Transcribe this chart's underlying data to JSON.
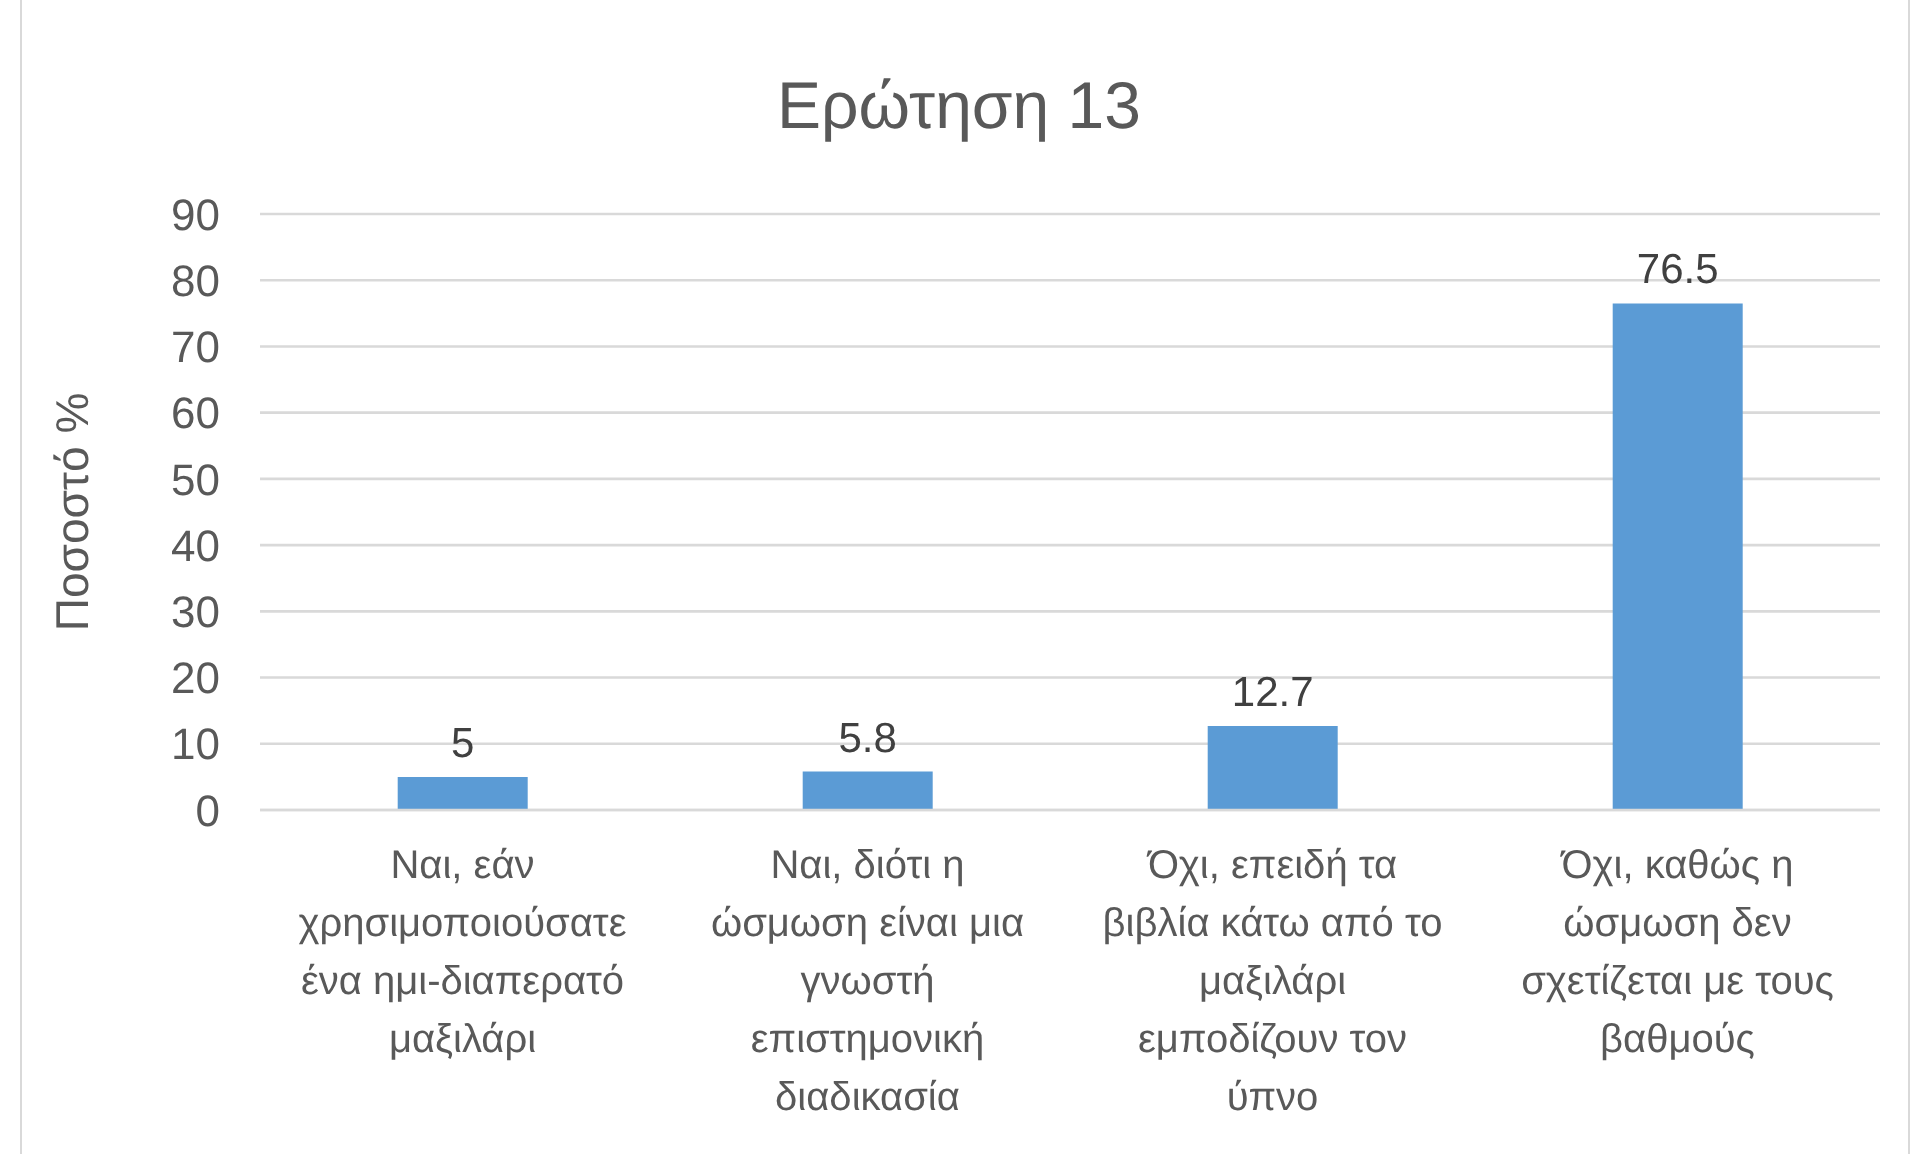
{
  "chart_data": {
    "type": "bar",
    "title": "Ερώτηση 13",
    "ylabel": "Ποσοστό %",
    "categories": [
      "Ναι, εάν χρησιμοποιούσατε ένα ημι-διαπερατό μαξιλάρι",
      "Ναι, διότι η ώσμωση είναι μια γνωστή επιστημονική διαδικασία",
      "Όχι, επειδή τα βιβλία κάτω από το μαξιλάρι εμποδίζουν τον ύπνο",
      "Όχι, καθώς η ώσμωση δεν σχετίζεται με τους βαθμούς"
    ],
    "values": [
      5,
      5.8,
      12.7,
      76.5
    ],
    "color": "#5b9bd5",
    "ylim": [
      0,
      90
    ],
    "yticks": [
      0,
      10,
      20,
      30,
      40,
      50,
      60,
      70,
      80,
      90
    ],
    "grid": "y",
    "data_labels": true
  }
}
